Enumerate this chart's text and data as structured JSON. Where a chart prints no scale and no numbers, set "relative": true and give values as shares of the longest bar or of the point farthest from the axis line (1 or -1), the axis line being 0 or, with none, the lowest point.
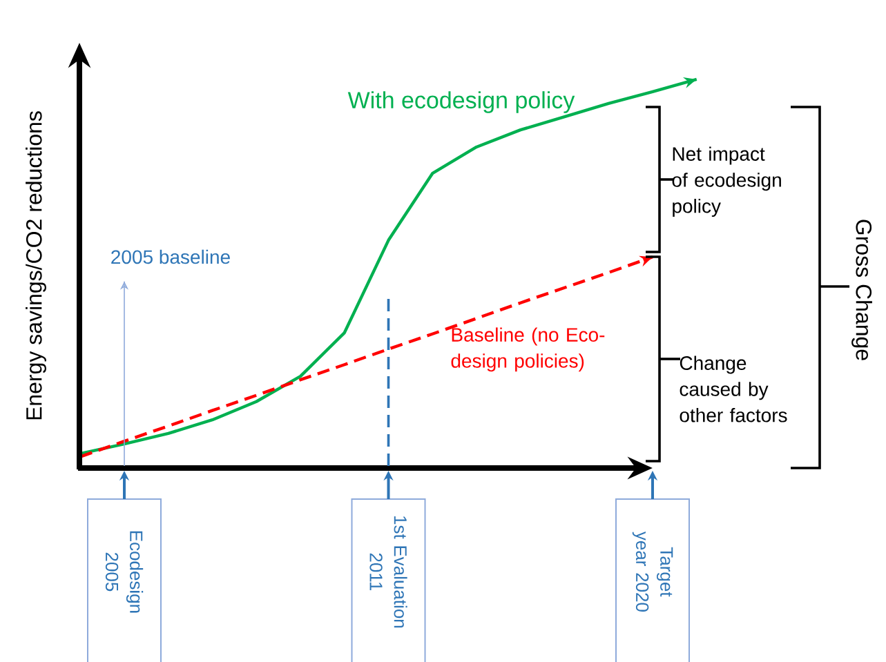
{
  "chart_data": {
    "type": "line",
    "relative": true,
    "ylabel": "Energy savings/CO2 reductions",
    "categories": [
      null,
      "Ecodesign 2005",
      null,
      null,
      null,
      null,
      null,
      "1st Evaluation 2011",
      null,
      null,
      null,
      null,
      null,
      "Target year 2020",
      null
    ],
    "series": [
      {
        "name": "With ecodesign policy",
        "color": "#00b050",
        "values": [
          0.037,
          0.062,
          0.089,
          0.124,
          0.171,
          0.236,
          0.348,
          0.586,
          0.758,
          0.826,
          0.87,
          0.904,
          0.938,
          0.968,
          1
        ]
      },
      {
        "name": "Baseline (no Eco-design policies)",
        "color": "#ff0000",
        "line_style": "dashed",
        "values": [
          0.029,
          0.069,
          0.108,
          0.148,
          0.187,
          0.227,
          0.266,
          0.306,
          0.345,
          0.385,
          0.425,
          0.464,
          0.503,
          0.543,
          null
        ]
      }
    ],
    "ref_lines": [
      {
        "axis": "x",
        "value": "Ecodesign 2005",
        "label": "2005 baseline",
        "color": "#8eaadb",
        "line_style": "solid"
      },
      {
        "axis": "x",
        "value": "1st Evaluation 2011",
        "color": "#2e75b6",
        "line_style": "dashed"
      }
    ],
    "annotations": [
      "Net impact of ecodesign policy",
      "Change caused by other factors",
      "Gross Change"
    ]
  }
}
